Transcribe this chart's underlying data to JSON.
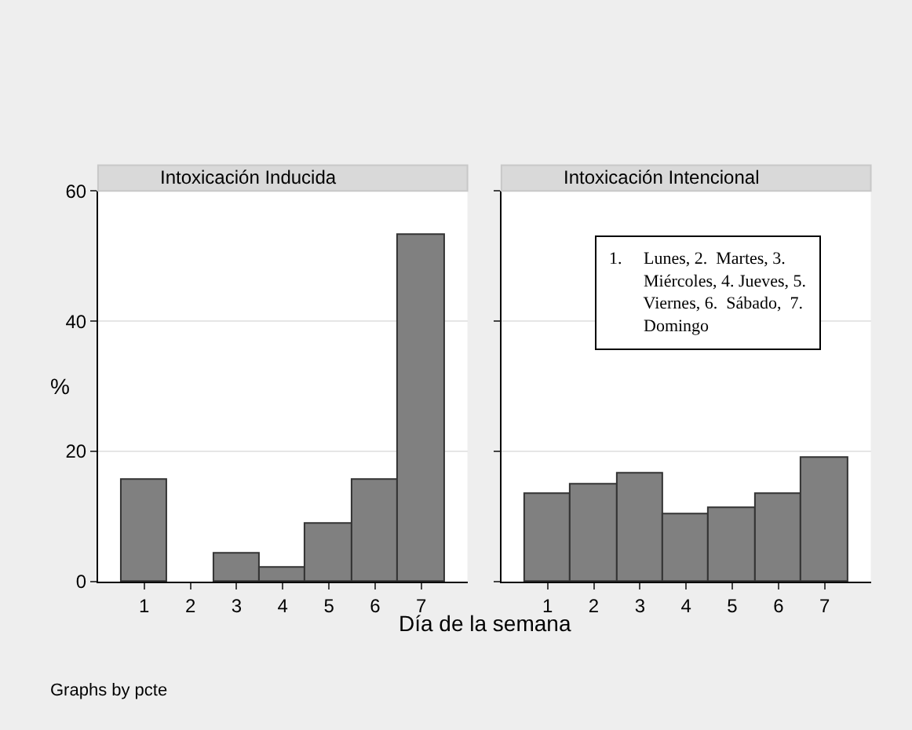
{
  "chart_data": [
    {
      "type": "bar",
      "title": "Intoxicación Inducida",
      "xlabel": "Día de la semana",
      "ylabel": "%",
      "categories": [
        "1",
        "2",
        "3",
        "4",
        "5",
        "6",
        "7"
      ],
      "values": [
        15.6,
        null,
        4.4,
        2.1,
        8.8,
        15.6,
        53.3
      ],
      "color": "#808080",
      "ylim": [
        0,
        60
      ],
      "yticks": [
        0,
        20,
        40,
        60
      ],
      "grid": "y",
      "annotations": [
        "Graphs by pcte"
      ]
    },
    {
      "type": "bar",
      "title": "Intoxicación Intencional",
      "categories": [
        "1",
        "2",
        "3",
        "4",
        "5",
        "6",
        "7"
      ],
      "values": [
        13.4,
        15.0,
        16.6,
        10.3,
        11.2,
        13.4,
        19.1
      ],
      "color": "#808080",
      "ylim": [
        0,
        60
      ],
      "yticks": [
        0,
        20,
        40,
        60
      ],
      "grid": "y",
      "tick_labels": "x",
      "annotations": [
        "1.     Lunes, 2.  Martes, 3.\n        Miércoles, 4. Jueves, 5.\n        Viernes, 6.  Sábado,  7.\n        Domingo"
      ]
    }
  ]
}
